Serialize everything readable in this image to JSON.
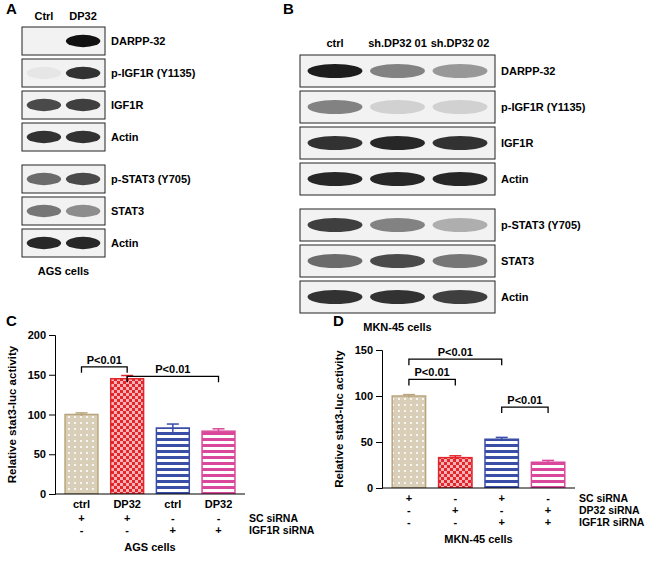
{
  "chart_data": [
    {
      "type": "bar",
      "title": "C",
      "y_label": "Relative stat3-luc activity",
      "x_label": "AGS cells",
      "categories": [
        "ctrl",
        "DP32",
        "ctrl",
        "DP32"
      ],
      "values": [
        100,
        145,
        83,
        79
      ],
      "errors": [
        2,
        4,
        5,
        3
      ],
      "colors": [
        "#b9a57c",
        "#e3262c",
        "#3a4ea8",
        "#d9489a"
      ],
      "ylim": [
        0,
        200
      ],
      "yticks": [
        0,
        50,
        100,
        150,
        200
      ],
      "conditions": [
        {
          "name": "SC siRNA",
          "marks": [
            "+",
            "+",
            "-",
            "-"
          ]
        },
        {
          "name": "IGF1R siRNA",
          "marks": [
            "-",
            "-",
            "+",
            "+"
          ]
        }
      ],
      "annotations": [
        {
          "text": "P<0.01",
          "from": 0,
          "to": 1,
          "y": 160
        },
        {
          "text": "P<0.01",
          "from": 1,
          "to": 3,
          "y": 148
        }
      ]
    },
    {
      "type": "bar",
      "title": "D",
      "y_label": "Relative stat3-luc activity",
      "x_label": "MKN-45 cells",
      "categories": [
        null,
        null,
        null,
        null
      ],
      "values": [
        100,
        33,
        53,
        28
      ],
      "errors": [
        1.5,
        2,
        2,
        2
      ],
      "colors": [
        "#b9a57c",
        "#e3262c",
        "#3a4ea8",
        "#d9489a"
      ],
      "ylim": [
        0,
        150
      ],
      "yticks": [
        0,
        50,
        100,
        150
      ],
      "conditions": [
        {
          "name": "SC siRNA",
          "marks": [
            "+",
            "-",
            "+",
            "-"
          ]
        },
        {
          "name": "DP32 siRNA",
          "marks": [
            "-",
            "+",
            "-",
            "+"
          ]
        },
        {
          "name": "IGF1R siRNA",
          "marks": [
            "-",
            "-",
            "+",
            "+"
          ]
        }
      ],
      "annotations": [
        {
          "text": "P<0.01",
          "from": 0,
          "to": 2,
          "y": 140
        },
        {
          "text": "P<0.01",
          "from": 0,
          "to": 1,
          "y": 118
        },
        {
          "text": "P<0.01",
          "from": 2,
          "to": 3,
          "y": 88
        }
      ]
    }
  ],
  "blots": [
    {
      "title": "A",
      "lanes": [
        "Ctrl",
        "DP32"
      ],
      "caption": "AGS cells",
      "groups": [
        [
          {
            "label": "DARPP-32",
            "intensity": [
              0,
              1
            ]
          },
          {
            "label": "p-IGF1R (Y1135)",
            "intensity": [
              0.05,
              0.85
            ]
          },
          {
            "label": "IGF1R",
            "intensity": [
              0.75,
              0.8
            ]
          },
          {
            "label": "Actin",
            "intensity": [
              0.85,
              0.85
            ]
          }
        ],
        [
          {
            "label": "p-STAT3 (Y705)",
            "intensity": [
              0.6,
              0.75
            ]
          },
          {
            "label": "STAT3",
            "intensity": [
              0.55,
              0.45
            ]
          },
          {
            "label": "Actin",
            "intensity": [
              0.9,
              0.9
            ]
          }
        ]
      ]
    },
    {
      "title": "B",
      "lanes": [
        "ctrl",
        "sh.DP32 01",
        "sh.DP32 02"
      ],
      "caption": "MKN-45 cells",
      "groups": [
        [
          {
            "label": "DARPP-32",
            "intensity": [
              0.95,
              0.5,
              0.4
            ]
          },
          {
            "label": "p-IGF1R (Y1135)",
            "intensity": [
              0.5,
              0.15,
              0.15
            ]
          },
          {
            "label": "IGF1R",
            "intensity": [
              0.85,
              0.9,
              0.85
            ]
          },
          {
            "label": "Actin",
            "intensity": [
              0.9,
              0.9,
              0.9
            ]
          }
        ],
        [
          {
            "label": "p-STAT3 (Y705)",
            "intensity": [
              0.8,
              0.5,
              0.3
            ]
          },
          {
            "label": "STAT3",
            "intensity": [
              0.6,
              0.75,
              0.55
            ]
          },
          {
            "label": "Actin",
            "intensity": [
              0.85,
              0.85,
              0.8
            ]
          }
        ]
      ]
    }
  ]
}
